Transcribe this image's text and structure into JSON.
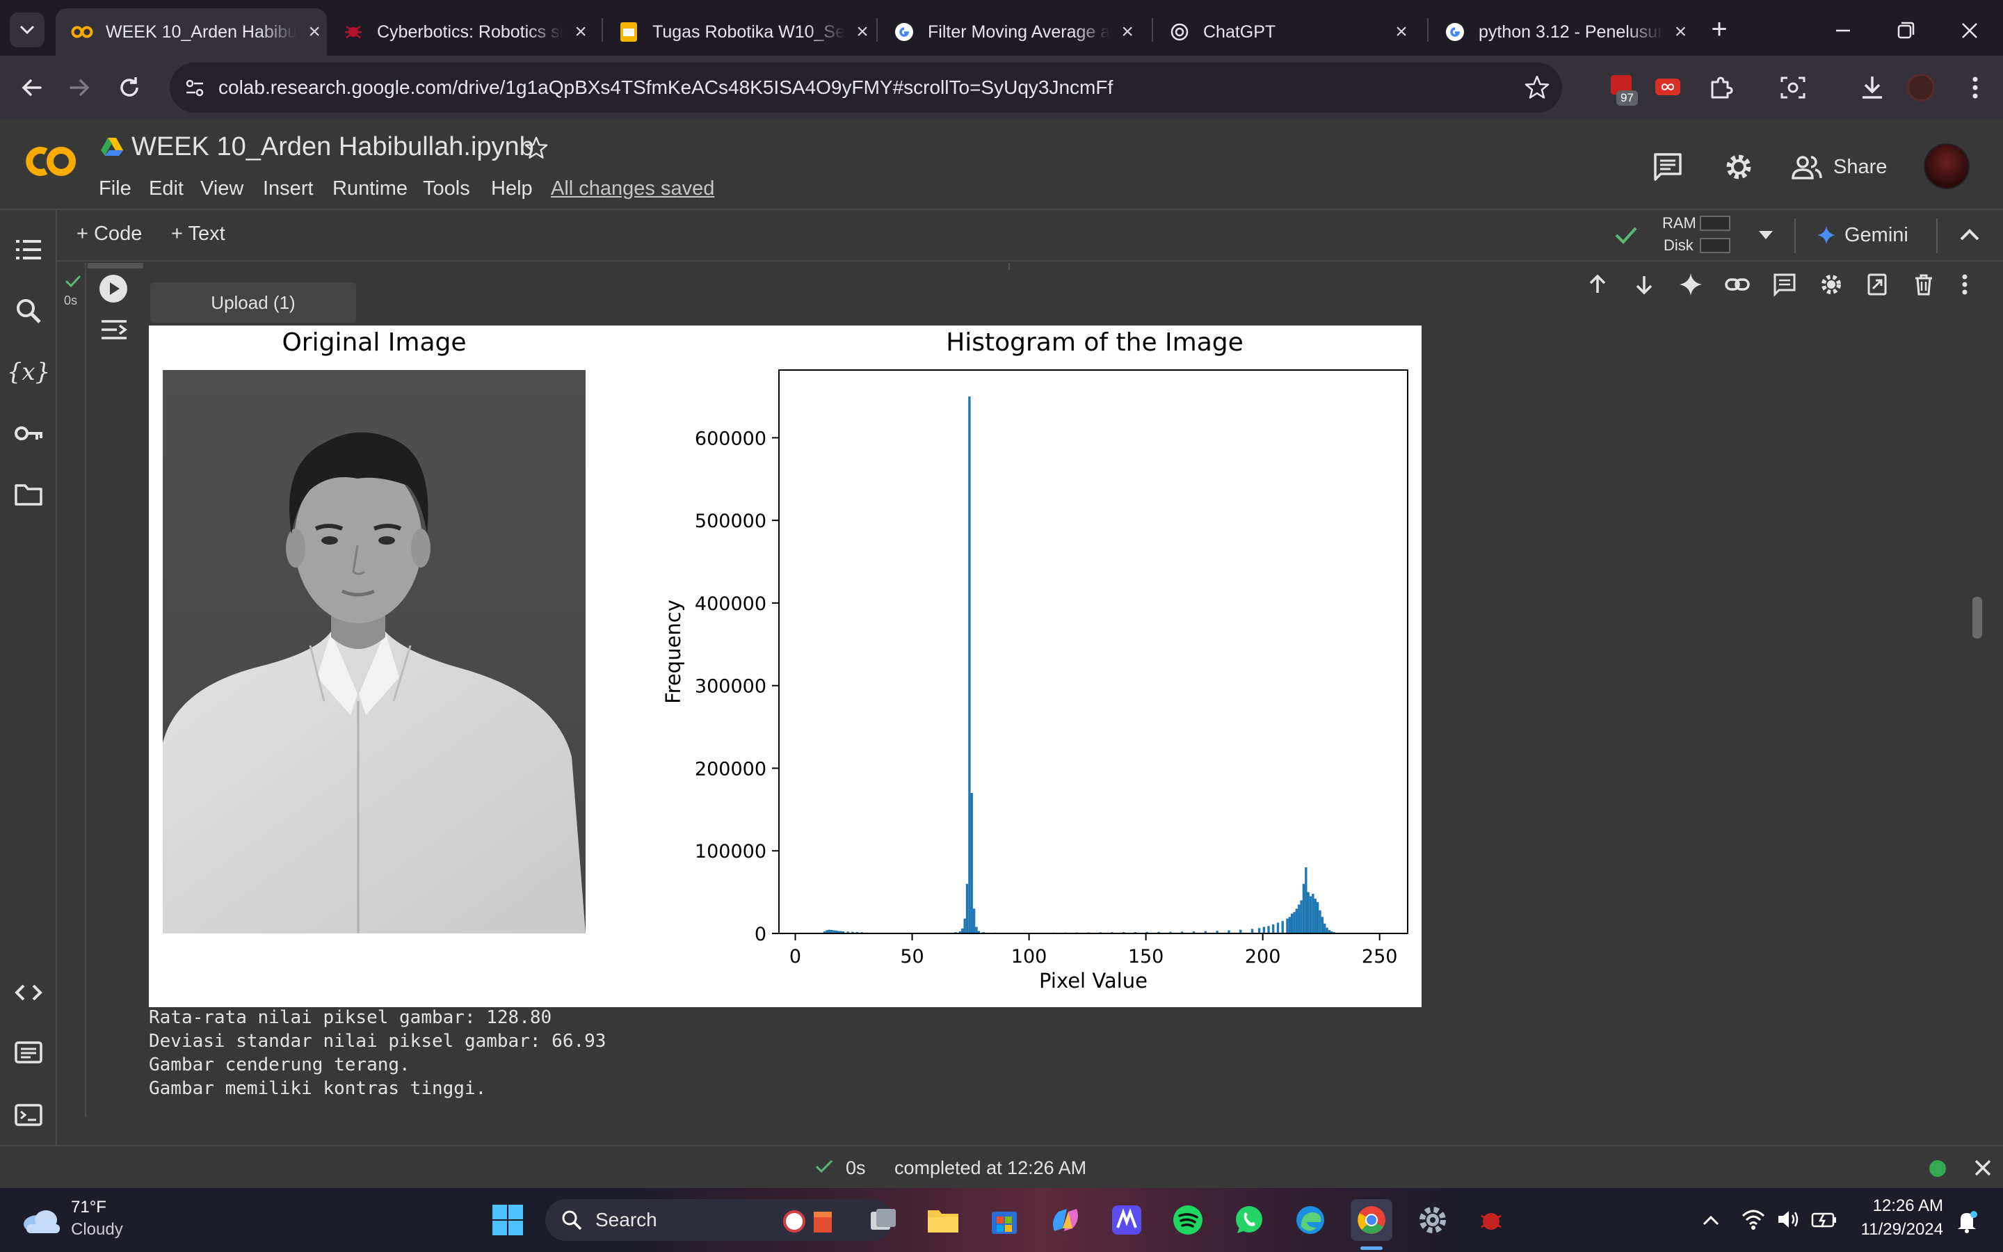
{
  "browser": {
    "tabs": [
      {
        "title": "WEEK 10_Arden Habibu",
        "icon": "colab-icon",
        "active": true
      },
      {
        "title": "Cyberbotics: Robotics si",
        "icon": "cyberbotics-icon"
      },
      {
        "title": "Tugas Robotika W10_Se",
        "icon": "slides-icon"
      },
      {
        "title": "Filter Moving Average a",
        "icon": "google-icon"
      },
      {
        "title": "ChatGPT",
        "icon": "chatgpt-icon"
      },
      {
        "title": "python 3.12 - Penelusur",
        "icon": "google-icon"
      }
    ],
    "url": "colab.research.google.com/drive/1g1aQpBXs4TSfmKeACs48K5ISA4O9yFMY#scrollTo=SyUqy3JncmFf",
    "extension_badge": "97"
  },
  "colab": {
    "logo": "CO",
    "notebook_title": "WEEK 10_Arden Habibullah.ipynb",
    "menu": [
      "File",
      "Edit",
      "View",
      "Insert",
      "Runtime",
      "Tools",
      "Help"
    ],
    "save_status": "All changes saved",
    "share_label": "Share",
    "add_code_label": "+ Code",
    "add_text_label": "+ Text",
    "ram_label": "RAM",
    "disk_label": "Disk",
    "gemini_label": "Gemini"
  },
  "cell": {
    "exec_time": "0s",
    "upload_widget_label": "Upload (1)",
    "output_lines": [
      "Rata-rata nilai piksel gambar: 128.80",
      "Deviasi standar nilai piksel gambar: 66.93",
      "Gambar cenderung terang.",
      "Gambar memiliki kontras tinggi."
    ]
  },
  "figure": {
    "left_title": "Original Image"
  },
  "chart_data": {
    "type": "bar",
    "title": "Histogram of the Image",
    "xlabel": "Pixel Value",
    "ylabel": "Frequency",
    "xlim": [
      -7,
      262
    ],
    "ylim": [
      0,
      682000
    ],
    "xticks": [
      0,
      50,
      100,
      150,
      200,
      250
    ],
    "yticks": [
      0,
      100000,
      200000,
      300000,
      400000,
      500000,
      600000
    ],
    "bar_color": "#1f77b4",
    "bins": [
      [
        12,
        2500
      ],
      [
        13,
        4000
      ],
      [
        14,
        4500
      ],
      [
        15,
        4200
      ],
      [
        16,
        3800
      ],
      [
        17,
        3500
      ],
      [
        18,
        3000
      ],
      [
        19,
        2800
      ],
      [
        20,
        2500
      ],
      [
        22,
        2200
      ],
      [
        24,
        2000
      ],
      [
        26,
        1800
      ],
      [
        28,
        1500
      ],
      [
        30,
        1000
      ],
      [
        35,
        600
      ],
      [
        40,
        500
      ],
      [
        45,
        500
      ],
      [
        50,
        500
      ],
      [
        55,
        500
      ],
      [
        60,
        600
      ],
      [
        65,
        800
      ],
      [
        68,
        1500
      ],
      [
        70,
        2500
      ],
      [
        71,
        6000
      ],
      [
        72,
        18000
      ],
      [
        73,
        60000
      ],
      [
        74,
        650000
      ],
      [
        75,
        170000
      ],
      [
        76,
        30000
      ],
      [
        77,
        8000
      ],
      [
        78,
        3000
      ],
      [
        80,
        1500
      ],
      [
        85,
        1000
      ],
      [
        90,
        900
      ],
      [
        95,
        800
      ],
      [
        100,
        800
      ],
      [
        105,
        900
      ],
      [
        110,
        1000
      ],
      [
        115,
        1100
      ],
      [
        120,
        1200
      ],
      [
        125,
        1300
      ],
      [
        130,
        1400
      ],
      [
        135,
        1500
      ],
      [
        140,
        1600
      ],
      [
        145,
        1700
      ],
      [
        150,
        1800
      ],
      [
        155,
        1900
      ],
      [
        160,
        2000
      ],
      [
        165,
        2200
      ],
      [
        170,
        2500
      ],
      [
        175,
        2800
      ],
      [
        180,
        3200
      ],
      [
        185,
        3800
      ],
      [
        190,
        4500
      ],
      [
        195,
        5500
      ],
      [
        198,
        6500
      ],
      [
        200,
        8000
      ],
      [
        202,
        9000
      ],
      [
        204,
        11000
      ],
      [
        206,
        13000
      ],
      [
        208,
        15000
      ],
      [
        210,
        18000
      ],
      [
        211,
        20000
      ],
      [
        212,
        24000
      ],
      [
        213,
        26000
      ],
      [
        214,
        30000
      ],
      [
        215,
        35000
      ],
      [
        216,
        40000
      ],
      [
        217,
        60000
      ],
      [
        218,
        80000
      ],
      [
        219,
        50000
      ],
      [
        220,
        45000
      ],
      [
        221,
        48000
      ],
      [
        222,
        42000
      ],
      [
        223,
        38000
      ],
      [
        224,
        28000
      ],
      [
        225,
        20000
      ],
      [
        226,
        12000
      ],
      [
        227,
        7000
      ],
      [
        228,
        4000
      ],
      [
        229,
        2500
      ],
      [
        230,
        1500
      ],
      [
        231,
        800
      ],
      [
        232,
        400
      ]
    ]
  },
  "status": {
    "time": "0s",
    "text": "completed at 12:26 AM"
  },
  "taskbar": {
    "temperature": "71°F",
    "weather": "Cloudy",
    "search_label": "Search",
    "clock_time": "12:26 AM",
    "clock_date": "11/29/2024"
  }
}
